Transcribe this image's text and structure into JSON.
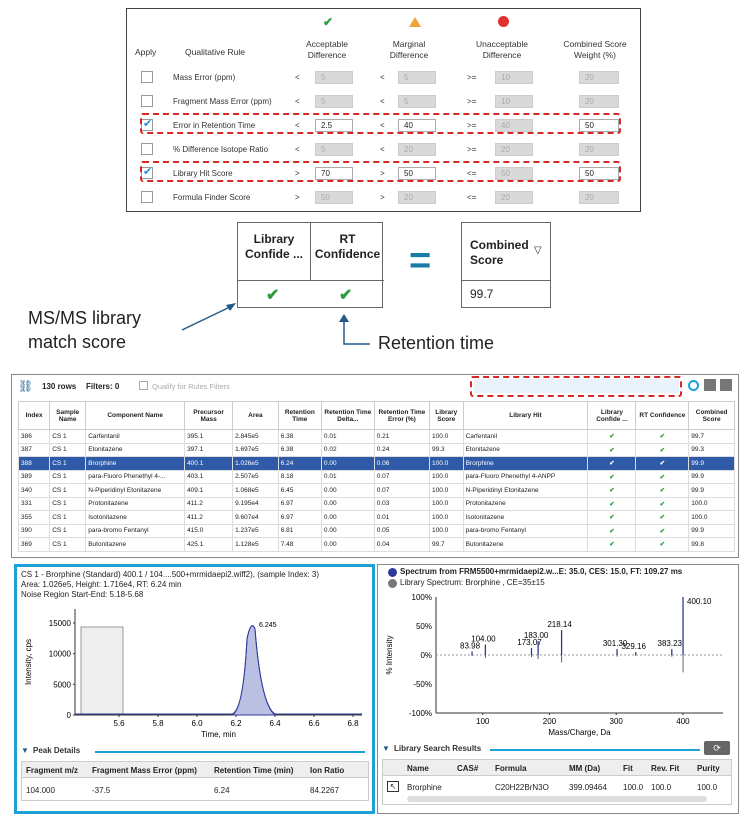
{
  "rules": {
    "headers": {
      "apply": "Apply",
      "rule": "Qualitative Rule",
      "acceptable": "Acceptable\nDifference",
      "marginal": "Marginal\nDifference",
      "unacceptable": "Unacceptable\nDifference",
      "weight": "Combined Score\nWeight (%)"
    },
    "rows": [
      {
        "name": "Mass Error (ppm)",
        "checked": false,
        "op1": "<",
        "v1": "5",
        "op2": "<",
        "v2": "5",
        "op3": ">=",
        "v3": "10",
        "w": "20",
        "dis": true
      },
      {
        "name": "Fragment Mass Error (ppm)",
        "checked": false,
        "op1": "<",
        "v1": "5",
        "op2": "<",
        "v2": "5",
        "op3": ">=",
        "v3": "10",
        "w": "20",
        "dis": true
      },
      {
        "name": "Error in Retention Time",
        "checked": true,
        "op1": "<",
        "v1": "2.5",
        "op2": "<",
        "v2": "40",
        "op3": ">=",
        "v3": "40",
        "w": "50",
        "dis": false
      },
      {
        "name": "% Difference Isotope Ratio",
        "checked": false,
        "op1": "<",
        "v1": "5",
        "op2": "<",
        "v2": "20",
        "op3": ">=",
        "v3": "20",
        "w": "20",
        "dis": true
      },
      {
        "name": "Library Hit Score",
        "checked": true,
        "op1": ">",
        "v1": "70",
        "op2": ">",
        "v2": "50",
        "op3": "<=",
        "v3": "50",
        "w": "50",
        "dis": false
      },
      {
        "name": "Formula Finder Score",
        "checked": false,
        "op1": ">",
        "v1": "50",
        "op2": ">",
        "v2": "20",
        "op3": "<=",
        "v3": "20",
        "w": "20",
        "dis": true
      }
    ]
  },
  "callout": {
    "lib_header": "Library\nConfide ...",
    "rt_header": "RT\nConfidence",
    "combined_header": "Combined\nScore",
    "combined_value": "99.7",
    "equals": "=",
    "ms_label": "MS/MS library\nmatch score",
    "rt_label": "Retention time"
  },
  "grid": {
    "rows_count": "130 rows",
    "filters": "Filters: 0",
    "qualify": "Qualify for Rules Filters",
    "columns": [
      "Index",
      "Sample Name",
      "Component Name",
      "Precursor Mass",
      "Area",
      "Retention Time",
      "Retention Time Delta...",
      "Retention Time Error (%)",
      "Library Score",
      "Library Hit",
      "Library Confide ...",
      "RT Confidence",
      "Combined Score"
    ],
    "rows": [
      [
        "386",
        "CS 1",
        "Carfentanil",
        "395.1",
        "2.845e5",
        "6.38",
        "0.01",
        "0.21",
        "100.0",
        "Carfentanil",
        "✔",
        "✔",
        "99.7"
      ],
      [
        "387",
        "CS 1",
        "Etonitazene",
        "397.1",
        "1.697e5",
        "6.38",
        "0.02",
        "0.24",
        "99.3",
        "Etonitazene",
        "✔",
        "✔",
        "99.3"
      ],
      [
        "388",
        "CS 1",
        "Brorphine",
        "400.1",
        "1.026e5",
        "6.24",
        "0.00",
        "0.06",
        "100.0",
        "Brorphine",
        "✔",
        "✔",
        "99.9"
      ],
      [
        "389",
        "CS 1",
        "para-Fluoro Phenethyl 4-...",
        "403.1",
        "2.507e5",
        "8.18",
        "0.01",
        "0.07",
        "100.0",
        "para-Fluoro Phenethyl 4-ANPP",
        "✔",
        "✔",
        "99.9"
      ],
      [
        "340",
        "CS 1",
        "N-Piperidinyl Etonitazene",
        "409.1",
        "1.068e5",
        "6.45",
        "0.00",
        "0.07",
        "100.0",
        "N-Piperidinyl Etonitazene",
        "✔",
        "✔",
        "99.9"
      ],
      [
        "331",
        "CS 1",
        "Protonitazene",
        "411.2",
        "9.195e4",
        "6.97",
        "0.00",
        "0.03",
        "100.0",
        "Protonitazene",
        "✔",
        "✔",
        "100.0"
      ],
      [
        "355",
        "CS 1",
        "Isotonitazene",
        "411.2",
        "9.607e4",
        "6.97",
        "0.00",
        "0.01",
        "100.0",
        "Isotonitazene",
        "✔",
        "✔",
        "100.0"
      ],
      [
        "390",
        "CS 1",
        "para-bromo Fentanyl",
        "415.0",
        "1.237e5",
        "6.81",
        "0.00",
        "0.05",
        "100.0",
        "para-bromo Fentanyl",
        "✔",
        "✔",
        "99.9"
      ],
      [
        "369",
        "CS 1",
        "Butonitazene",
        "425.1",
        "1.128e5",
        "7.48",
        "0.00",
        "0.04",
        "99.7",
        "Butonitazene",
        "✔",
        "✔",
        "99.8"
      ]
    ],
    "selected_index": 2
  },
  "xic": {
    "info1": "CS 1 - Brorphine (Standard) 400.1 / 104....500+mrmidaepi2.wiff2), (sample Index: 3)",
    "info2": "Area: 1.026e5, Height: 1.716e4, RT: 6.24 min",
    "info3": "Noise Region Start-End: 5.18-5.68",
    "ylabel": "Intensity, cps",
    "xlabel": "Time, min",
    "yticks": [
      "15000",
      "10000",
      "5000",
      "0"
    ],
    "xticks": [
      "5.6",
      "5.8",
      "6.0",
      "6.2",
      "6.4",
      "6.6",
      "6.8"
    ],
    "peak_label": "6.245",
    "details_title": "Peak Details",
    "details_cols": [
      "Fragment m/z",
      "Fragment Mass Error (ppm)",
      "Retention Time (min)",
      "Ion Ratio"
    ],
    "details_row": [
      "104.000",
      "-37.5",
      "6.24",
      "84.2267"
    ]
  },
  "spectrum": {
    "title": "Spectrum from FRM5500+mrmidaepi2.w...E: 35.0, CES: 15.0, FT: 109.27 ms",
    "subtitle": "Library Spectrum: Brorphine , CE=35±15",
    "ylabel": "% Intensity",
    "xlabel": "Mass/Charge, Da",
    "yticks": [
      "100%",
      "50%",
      "0%",
      "-50%",
      "-100%"
    ],
    "xticks": [
      "100",
      "200",
      "300",
      "400"
    ],
    "peak_labels": [
      "400.10",
      "218.14",
      "183.00",
      "104.00",
      "83.98",
      "173.07",
      "301.30",
      "329.16",
      "383.23"
    ],
    "search_title": "Library Search Results",
    "search_cols": [
      "Name",
      "CAS#",
      "Formula",
      "MM (Da)",
      "Fit",
      "Rev. Fit",
      "Purity"
    ],
    "search_row": [
      "Brorphine",
      "",
      "C20H22BrN3O",
      "399.09464",
      "100.0",
      "100.0",
      "100.0"
    ]
  },
  "colors": {
    "accent": "#1da1d6",
    "check": "#2a9d3a",
    "dash": "#d62828",
    "select": "#2e5aa8",
    "trace": "#2e3a9a"
  }
}
